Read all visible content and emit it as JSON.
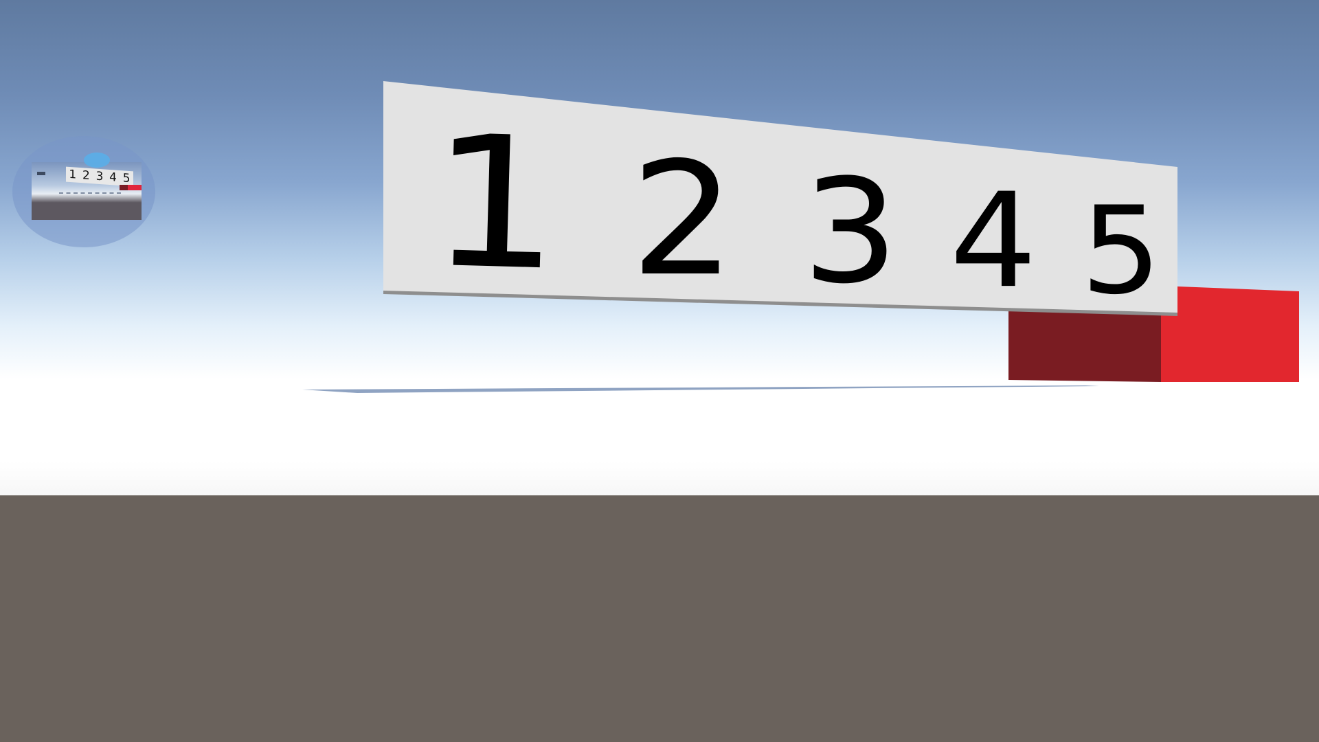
{
  "scene": {
    "sky_colors": [
      "#5f7aa0",
      "#88a6cf",
      "#e4f0fa"
    ],
    "ground_color": "#6a625c",
    "horizon_color": "#ffffff"
  },
  "board": {
    "digits": [
      "1",
      "2",
      "3",
      "4",
      "5"
    ],
    "background_color": "#e3e3e3",
    "text_color": "#000000"
  },
  "red_block": {
    "front_color": "#e2272e",
    "side_color": "#7a1c22"
  },
  "minimap": {
    "digits": [
      "1",
      "2",
      "3",
      "4",
      "5"
    ],
    "marker_color": "#5aaee8"
  }
}
